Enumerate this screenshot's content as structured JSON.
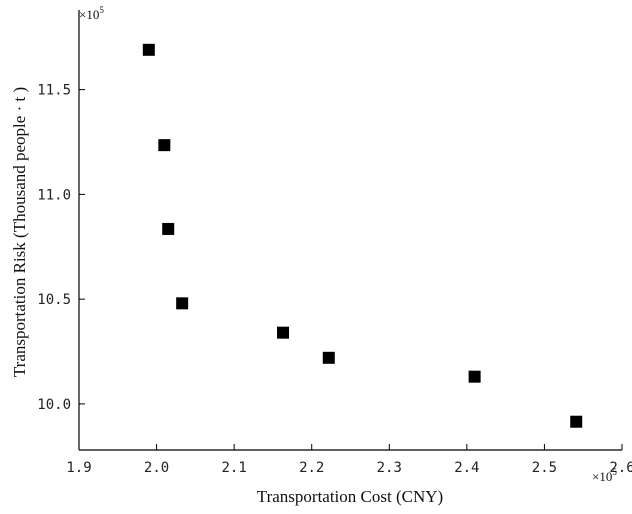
{
  "chart_data": {
    "type": "scatter",
    "title": "",
    "xlabel": "Transportation Cost (CNY)",
    "ylabel": "Transportation Risk (Thousand people · t )",
    "x_multiplier": {
      "base": "×10",
      "exp": "5"
    },
    "y_multiplier": {
      "base": "×10",
      "exp": "5"
    },
    "xlim": [
      1.9,
      2.6
    ],
    "ylim": [
      9.78,
      11.88
    ],
    "x_ticks": [
      1.9,
      2.0,
      2.1,
      2.2,
      2.3,
      2.4,
      2.5,
      2.6
    ],
    "x_tick_labels": [
      "1.9",
      "2.0",
      "2.1",
      "2.2",
      "2.3",
      "2.4",
      "2.5",
      "2.6"
    ],
    "y_ticks": [
      10.0,
      10.5,
      11.0,
      11.5
    ],
    "y_tick_labels": [
      "10.0",
      "10.5",
      "11.0",
      "11.5"
    ],
    "grid": false,
    "marker": "square",
    "marker_color": "#000000",
    "series": [
      {
        "x": [
          1.99,
          2.01,
          2.015,
          2.033,
          2.163,
          2.222,
          2.41,
          2.541
        ],
        "y": [
          11.69,
          11.235,
          10.835,
          10.48,
          10.34,
          10.22,
          10.13,
          9.915
        ]
      }
    ]
  }
}
